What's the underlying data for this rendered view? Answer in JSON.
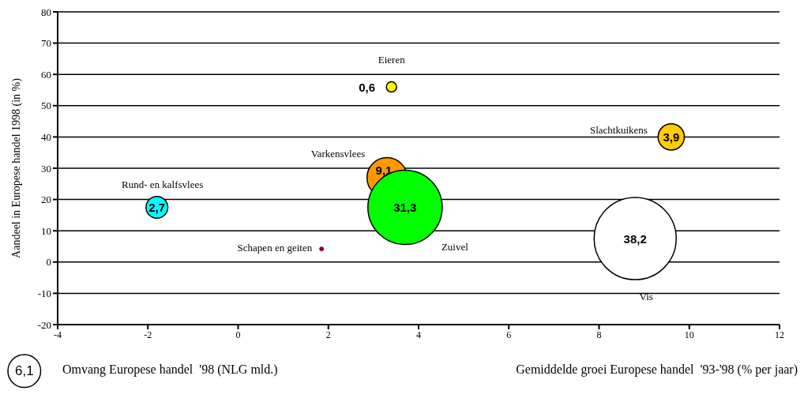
{
  "chart_data": {
    "type": "bubble",
    "xlabel": "Gemiddelde groei Europese handel  '93-'98 (% per jaar)",
    "ylabel": "Aandeel in Europese  handel 1998 (in %)",
    "legend_title": "Omvang Europese handel  '98 (NLG mld.)",
    "size_legend": [
      {
        "value": 6.1,
        "label": "6,1"
      }
    ],
    "xlim": [
      -4,
      12
    ],
    "xticks": [
      -4,
      -2,
      0,
      2,
      4,
      6,
      8,
      10,
      12
    ],
    "ylim": [
      -20,
      80
    ],
    "yticks": [
      -20,
      -10,
      0,
      10,
      20,
      30,
      40,
      50,
      60,
      70,
      80
    ],
    "grid": "y",
    "series": [
      {
        "name": "Eieren",
        "color": "#ffff00",
        "x": [
          3.4
        ],
        "values": [
          56
        ],
        "sizes": [
          0.6
        ],
        "value_labels": [
          "0,6"
        ]
      },
      {
        "name": "Slachtkuikens",
        "color": "#ffcc00",
        "x": [
          9.6
        ],
        "values": [
          40
        ],
        "sizes": [
          3.9
        ],
        "value_labels": [
          "3,9"
        ]
      },
      {
        "name": "Varkensvlees",
        "color": "#ff9900",
        "x": [
          3.3
        ],
        "values": [
          27
        ],
        "sizes": [
          9.1
        ],
        "value_labels": [
          "9,1"
        ]
      },
      {
        "name": "Rund- en  kalfsvlees",
        "color": "#00ffff",
        "x": [
          -1.8
        ],
        "values": [
          17.5
        ],
        "sizes": [
          2.7
        ],
        "value_labels": [
          "2,7"
        ]
      },
      {
        "name": "Zuivel",
        "color": "#00ff00",
        "x": [
          3.7
        ],
        "values": [
          17.5
        ],
        "sizes": [
          31.3
        ],
        "value_labels": [
          "31,3"
        ]
      },
      {
        "name": "Schapen en geiten",
        "color": "#800040",
        "x": [
          1.85
        ],
        "values": [
          4.2
        ],
        "sizes": [
          0.1
        ],
        "value_labels": [
          null
        ]
      },
      {
        "name": "Vis",
        "color": "#ffffff",
        "x": [
          8.8
        ],
        "values": [
          7.5
        ],
        "sizes": [
          38.2
        ],
        "value_labels": [
          "38,2"
        ]
      }
    ]
  }
}
